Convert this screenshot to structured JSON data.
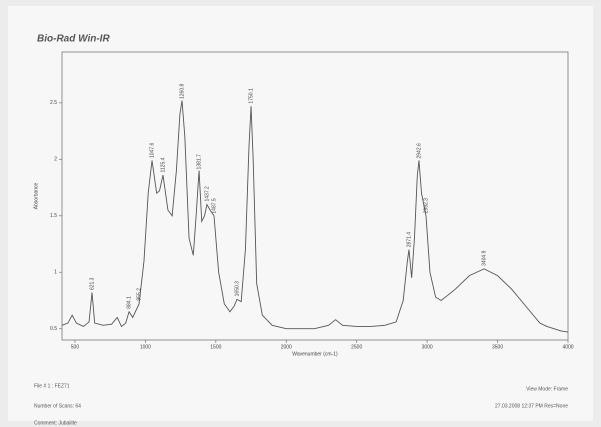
{
  "chart_data": {
    "type": "line",
    "title": "Bio-Rad Win-IR",
    "x_label": "Wavenumber (cm-1)",
    "y_label": "Absorbance",
    "xlim": [
      408,
      4000
    ],
    "ylim": [
      0.4,
      2.95
    ],
    "xticks": [
      500,
      1000,
      1500,
      2000,
      2500,
      3000,
      3500,
      4000
    ],
    "yticks": [
      0.5,
      1,
      1.5,
      2,
      2.5
    ],
    "color": "#555555",
    "x": [
      408,
      450,
      480,
      510,
      560,
      600,
      621,
      640,
      700,
      760,
      800,
      830,
      860,
      884,
      910,
      955,
      990,
      1020,
      1047,
      1080,
      1100,
      1125,
      1160,
      1190,
      1220,
      1245,
      1260,
      1280,
      1310,
      1340,
      1360,
      1381,
      1400,
      1420,
      1437,
      1460,
      1487,
      1520,
      1560,
      1600,
      1630,
      1650,
      1680,
      1710,
      1735,
      1750,
      1765,
      1790,
      1830,
      1900,
      2000,
      2100,
      2200,
      2300,
      2350,
      2400,
      2500,
      2600,
      2700,
      2780,
      2830,
      2860,
      2871,
      2890,
      2910,
      2930,
      2942,
      2960,
      2992,
      3020,
      3060,
      3100,
      3200,
      3300,
      3404,
      3500,
      3600,
      3700,
      3800,
      3850,
      3900,
      3950,
      4000
    ],
    "values": [
      0.53,
      0.55,
      0.62,
      0.55,
      0.52,
      0.56,
      0.82,
      0.55,
      0.53,
      0.54,
      0.6,
      0.52,
      0.55,
      0.65,
      0.6,
      0.72,
      1.1,
      1.7,
      1.99,
      1.7,
      1.72,
      1.86,
      1.55,
      1.5,
      1.9,
      2.4,
      2.52,
      2.2,
      1.3,
      1.15,
      1.5,
      1.9,
      1.45,
      1.5,
      1.6,
      1.55,
      1.5,
      1.0,
      0.72,
      0.65,
      0.7,
      0.76,
      0.74,
      1.2,
      2.1,
      2.47,
      2.0,
      0.9,
      0.62,
      0.53,
      0.5,
      0.5,
      0.5,
      0.53,
      0.58,
      0.53,
      0.52,
      0.52,
      0.53,
      0.56,
      0.75,
      1.1,
      1.2,
      0.95,
      1.3,
      1.85,
      1.99,
      1.7,
      1.5,
      1.0,
      0.78,
      0.75,
      0.85,
      0.97,
      1.03,
      0.97,
      0.85,
      0.7,
      0.55,
      0.52,
      0.5,
      0.48,
      0.47
    ],
    "peak_labels": [
      621.3,
      884.1,
      955.2,
      1047.6,
      1125.4,
      1260.8,
      1381.7,
      1437.2,
      1487.5,
      1650.3,
      1750.1,
      2871.4,
      2942.6,
      2992.3,
      3404.9
    ]
  },
  "footer": {
    "left": [
      "File # 1 : FEZ71",
      "Number of Scans: 64",
      "Comment: Jubailite"
    ],
    "right": [
      "View Mode: Frame",
      "27.03.2008  12:37 PM  Res=None"
    ]
  }
}
